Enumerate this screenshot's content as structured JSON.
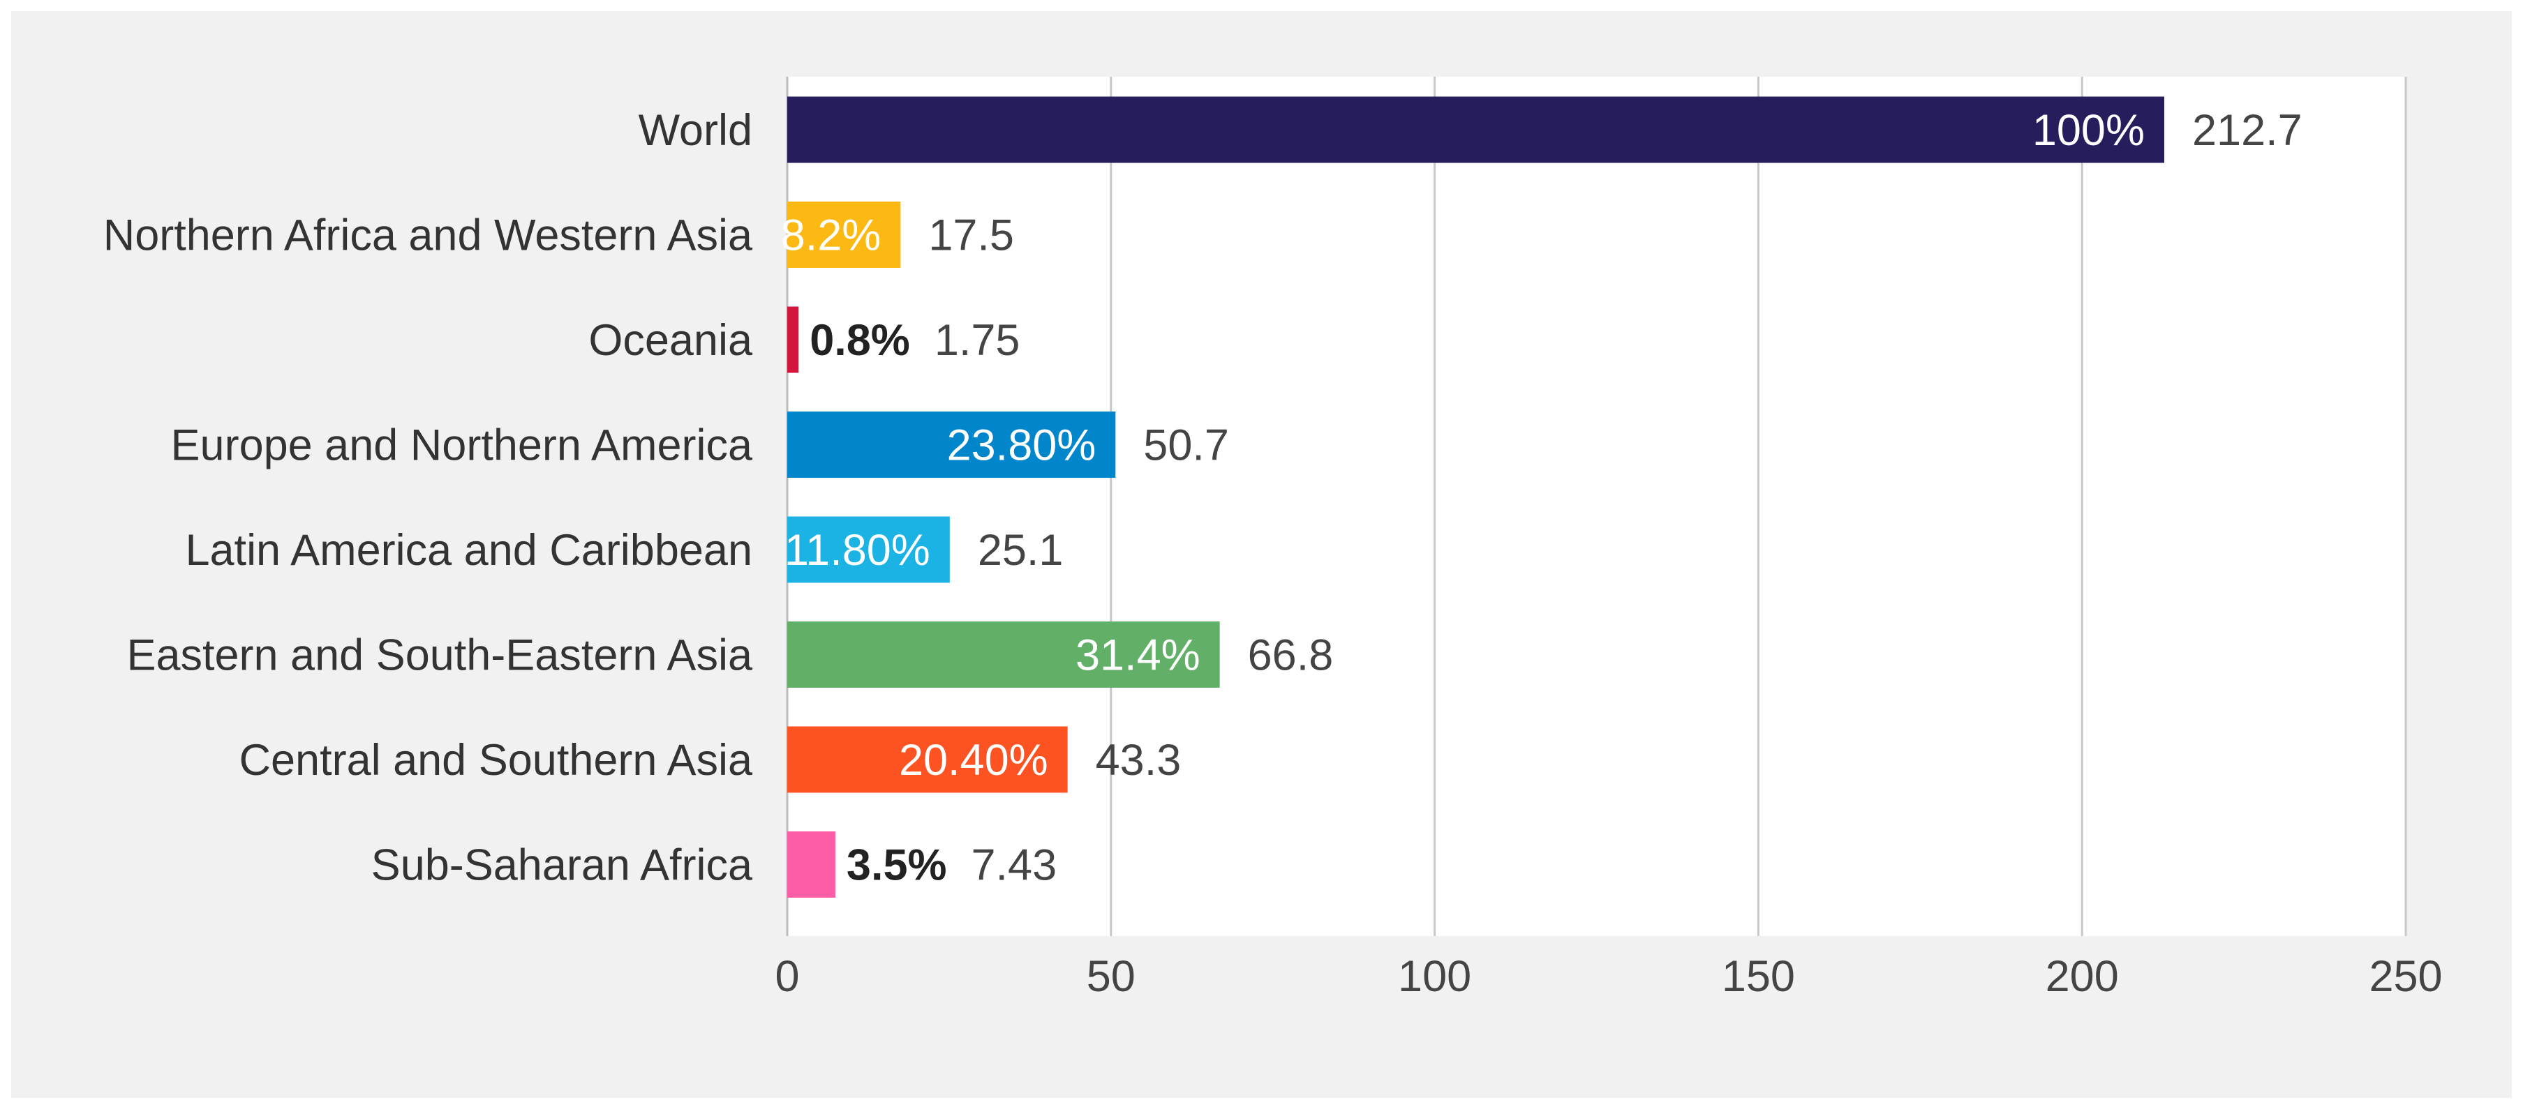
{
  "chart_data": {
    "type": "bar",
    "orientation": "horizontal",
    "title": "",
    "xlabel": "",
    "ylabel": "",
    "xlim": [
      0,
      250
    ],
    "xticks": [
      0,
      50,
      100,
      150,
      200,
      250
    ],
    "grid": "vertical",
    "categories": [
      "World",
      "Northern Africa and Western Asia",
      "Oceania",
      "Europe and Northern America",
      "Latin America and Caribbean",
      "Eastern and South-Eastern Asia",
      "Central and Southern Asia",
      "Sub-Saharan Africa"
    ],
    "values": [
      212.7,
      17.5,
      1.75,
      50.7,
      25.1,
      66.8,
      43.3,
      7.43
    ],
    "value_labels": [
      "212.7",
      "17.5",
      "1.75",
      "50.7",
      "25.1",
      "66.8",
      "43.3",
      "7.43"
    ],
    "percent_labels": [
      "100%",
      "8.2%",
      "0.8%",
      "23.80%",
      "11.80%",
      "31.4%",
      "20.40%",
      "3.5%"
    ],
    "percent_label_inside": [
      true,
      true,
      false,
      true,
      true,
      true,
      true,
      false
    ],
    "colors": [
      "#251d5c",
      "#fcb813",
      "#d3153b",
      "#0185cb",
      "#1bb2e4",
      "#62b067",
      "#fd5222",
      "#fd5da7"
    ]
  }
}
